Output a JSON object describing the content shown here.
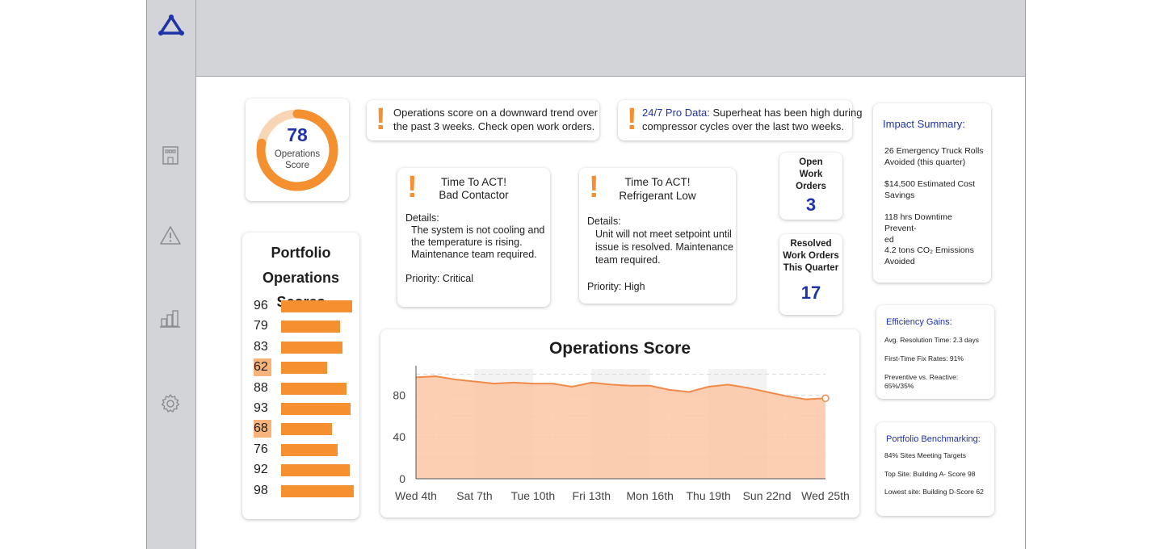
{
  "score_widget": {
    "value": "78",
    "label_line1": "Operations",
    "label_line2": "Score",
    "fraction": 0.78
  },
  "alerts": [
    {
      "text_line1": "Operations score on a downward trend over",
      "text_line2": "the past 3 weeks. Check open work orders."
    },
    {
      "prefix": "24/7 Pro Data:",
      "text_line1": " Superheat has been high during",
      "text_line2": "compressor cycles over the last two weeks."
    }
  ],
  "act_cards": [
    {
      "title": "Time To ACT!",
      "subtitle": "Bad Contactor",
      "details_label": "Details:",
      "details": [
        "The system is not cooling and",
        "the temperature is rising.",
        "Maintenance team required."
      ],
      "priority": "Priority: Critical"
    },
    {
      "title": "Time To ACT!",
      "subtitle": "Refrigerant Low",
      "details_label": "Details:",
      "details": [
        "Unit will not meet setpoint until",
        "issue is resolved. Maintenance",
        "team required."
      ],
      "priority": "Priority: High"
    }
  ],
  "open_work_orders": {
    "label_lines": [
      "Open",
      "Work",
      "Orders"
    ],
    "value": "3"
  },
  "resolved_work_orders": {
    "label_lines": [
      "Resolved",
      "Work Orders",
      "This Quarter"
    ],
    "value": "17"
  },
  "impact_summary": {
    "title": "Impact Summary:",
    "items": [
      [
        "26 Emergency Truck Rolls",
        "Avoided (this quarter)"
      ],
      [
        "$14,500 Estimated Cost",
        "Savings"
      ],
      [
        "118 hrs Downtime Prevent-",
        "ed"
      ],
      [
        "4.2 tons CO₂ Emissions",
        "Avoided"
      ]
    ]
  },
  "efficiency_gains": {
    "title": "Efficiency Gains:",
    "items": [
      "Avg. Resolution Time: 2.3 days",
      "First-Time Fix Rates: 91%",
      "Preventive vs. Reactive: 65%/35%"
    ]
  },
  "portfolio_benchmarking": {
    "title": "Portfolio Benchmarking:",
    "items": [
      "84% Sites Meeting Targets",
      "Top Site: Building A- Score 98",
      "Lowest site: Building D-Score 62"
    ]
  },
  "portfolio": {
    "title_line1": "Portfolio",
    "title_line2": "Operations Scores",
    "scores": [
      {
        "value": "96",
        "score": 96,
        "highlight": false
      },
      {
        "value": "79",
        "score": 79,
        "highlight": false
      },
      {
        "value": "83",
        "score": 83,
        "highlight": false
      },
      {
        "value": "62",
        "score": 62,
        "highlight": true
      },
      {
        "value": "88",
        "score": 88,
        "highlight": false
      },
      {
        "value": "93",
        "score": 93,
        "highlight": false
      },
      {
        "value": "68",
        "score": 68,
        "highlight": true
      },
      {
        "value": "76",
        "score": 76,
        "highlight": false
      },
      {
        "value": "92",
        "score": 92,
        "highlight": false
      },
      {
        "value": "98",
        "score": 98,
        "highlight": false
      }
    ],
    "highlight_color": "#f7b37a",
    "bar_color": "#f4902f"
  },
  "chart_data": {
    "type": "area",
    "title": "Operations Score",
    "xlabel": "",
    "ylabel": "",
    "ylim": [
      0,
      105
    ],
    "yticks": [
      0,
      40,
      80
    ],
    "xtick_labels": [
      "Wed 4th",
      "Sat 7th",
      "Tue 10th",
      "Fri 13th",
      "Mon 16th",
      "Thu 19th",
      "Sun 22nd",
      "Wed 25th"
    ],
    "xtick_day_index": [
      0,
      3,
      6,
      9,
      12,
      15,
      18,
      21
    ],
    "series": [
      {
        "values": [
          97,
          98,
          95,
          93,
          91,
          92,
          91,
          91,
          88,
          92,
          90,
          89,
          89,
          85,
          83,
          88,
          90,
          87,
          83,
          79,
          76,
          77
        ]
      }
    ],
    "fill_color": "#fbc6a4",
    "line_color": "#f08a4b",
    "grid": true
  },
  "colors": {
    "accent_orange": "#f4902f",
    "brand_blue": "#1f33a8",
    "chrome_gray": "#d3d4d8"
  }
}
